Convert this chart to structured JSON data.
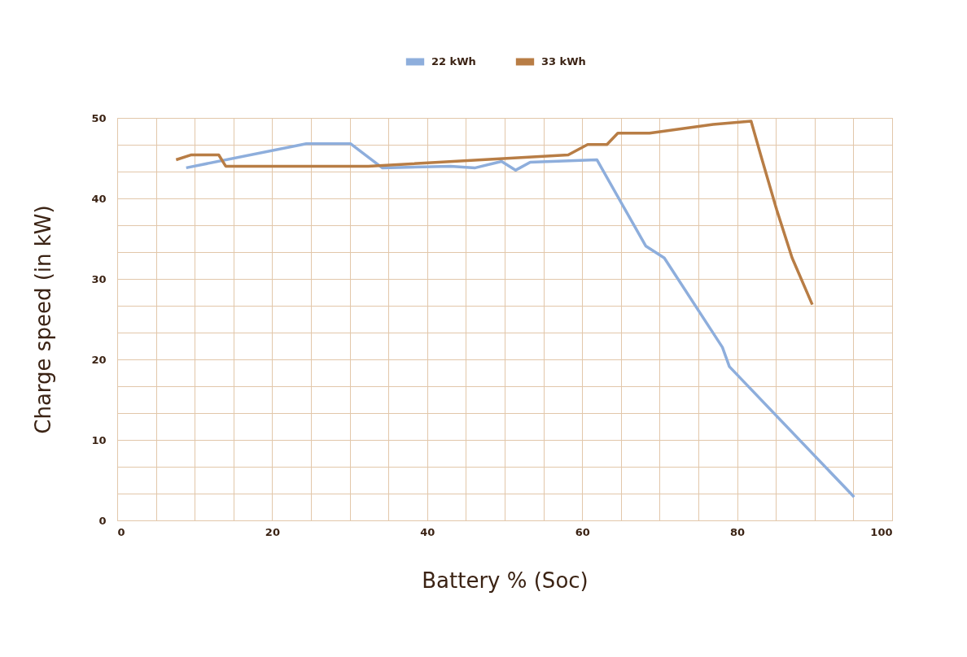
{
  "chart_data": {
    "type": "line",
    "xlabel": "Battery % (Soc)",
    "ylabel": "Charge speed (in kW)",
    "xlim": [
      0,
      100
    ],
    "ylim": [
      0,
      50
    ],
    "xticks": [
      0,
      {
        "value": 5,
        "label": null
      },
      {
        "value": 10,
        "label": null
      },
      {
        "value": 15,
        "label": null
      },
      20,
      {
        "value": 25,
        "label": null
      },
      {
        "value": 30,
        "label": null
      },
      {
        "value": 35,
        "label": null
      },
      40,
      {
        "value": 45,
        "label": null
      },
      {
        "value": 50,
        "label": null
      },
      {
        "value": 55,
        "label": null
      },
      60,
      {
        "value": 65,
        "label": null
      },
      {
        "value": 70,
        "label": null
      },
      {
        "value": 75,
        "label": null
      },
      80,
      {
        "value": 85,
        "label": null
      },
      {
        "value": 90,
        "label": null
      },
      {
        "value": 95,
        "label": null
      },
      100
    ],
    "yticks": [
      0,
      {
        "value": 3.333,
        "label": null
      },
      {
        "value": 6.667,
        "label": null
      },
      10,
      {
        "value": 13.333,
        "label": null
      },
      {
        "value": 16.667,
        "label": null
      },
      20,
      {
        "value": 23.333,
        "label": null
      },
      {
        "value": 26.667,
        "label": null
      },
      30,
      {
        "value": 33.333,
        "label": null
      },
      {
        "value": 36.667,
        "label": null
      },
      40,
      {
        "value": 43.333,
        "label": null
      },
      {
        "value": 46.667,
        "label": null
      },
      50
    ],
    "grid": true,
    "legend": "top",
    "marker": "none",
    "line_style": "solid",
    "series": [
      {
        "name": "22 kWh",
        "color": "#8eaedc",
        "x": [
          8.9,
          24.4,
          30.1,
          34.2,
          43.0,
          46.2,
          49.6,
          51.4,
          53.3,
          61.9,
          68.2,
          70.6,
          78.1,
          79.0,
          95.1
        ],
        "values": [
          43.8,
          46.8,
          46.8,
          43.8,
          44.0,
          43.8,
          44.6,
          43.5,
          44.5,
          44.8,
          34.1,
          32.6,
          21.5,
          19.1,
          2.9
        ]
      },
      {
        "name": "33 kWh",
        "color": "#b87d45",
        "x": [
          7.6,
          9.5,
          13.1,
          14.0,
          32.4,
          58.2,
          60.7,
          63.2,
          64.6,
          68.7,
          76.9,
          81.8,
          83.1,
          85.1,
          87.1,
          89.7
        ],
        "values": [
          44.8,
          45.4,
          45.4,
          44.0,
          44.0,
          45.4,
          46.7,
          46.7,
          48.1,
          48.1,
          49.2,
          49.6,
          45.2,
          38.6,
          32.6,
          26.8
        ]
      }
    ]
  }
}
